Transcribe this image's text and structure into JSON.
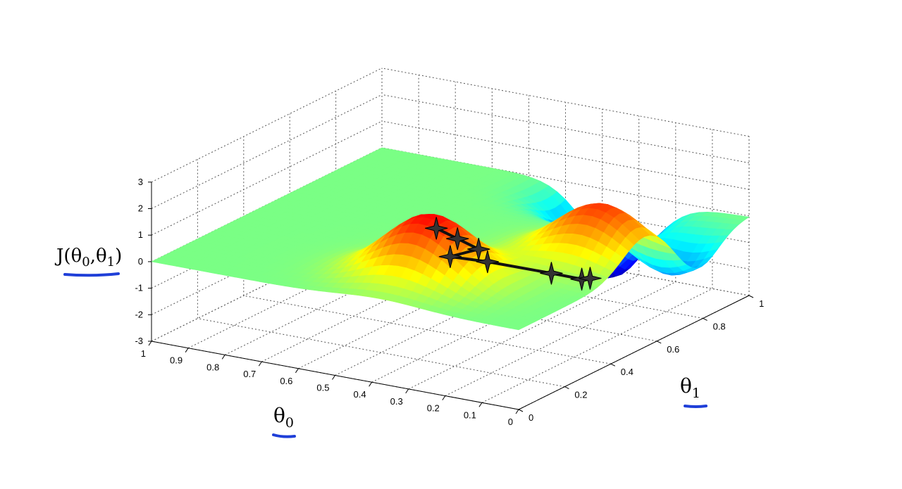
{
  "chart_data": {
    "type": "surface",
    "z_axis": {
      "label_prefix": "J(θ",
      "label_sub0": "0",
      "label_mid": ",θ",
      "label_sub1": "1",
      "label_suffix": ")",
      "ticks": [
        "-3",
        "-2",
        "-1",
        "0",
        "1",
        "2",
        "3"
      ],
      "range": [
        -3,
        3
      ]
    },
    "theta0_axis": {
      "label": "θ",
      "label_sub": "0",
      "ticks": [
        "1",
        "0.9",
        "0.8",
        "0.7",
        "0.6",
        "0.5",
        "0.4",
        "0.3",
        "0.2",
        "0.1",
        "0"
      ],
      "range": [
        1,
        0
      ]
    },
    "theta1_axis": {
      "label": "θ",
      "label_sub": "1",
      "ticks": [
        "0",
        "0.2",
        "0.4",
        "0.6",
        "0.8",
        "1"
      ],
      "range": [
        0,
        1
      ]
    },
    "grid": true,
    "colormap": "jet",
    "surface_features": [
      {
        "kind": "peak",
        "theta0": 0.38,
        "theta1": 0.22,
        "z": 2.4
      },
      {
        "kind": "peak",
        "theta0": 0.12,
        "theta1": 0.55,
        "z": 2.1
      },
      {
        "kind": "valley",
        "theta0": 0.35,
        "theta1": 0.95,
        "z": -3.0
      },
      {
        "kind": "valley",
        "theta0": 0.08,
        "theta1": 0.78,
        "z": -1.6
      }
    ],
    "descent_path": {
      "marker": "star",
      "points": [
        {
          "theta0": 0.4,
          "theta1": 0.28,
          "z": 1.6
        },
        {
          "theta0": 0.38,
          "theta1": 0.34,
          "z": 1.0
        },
        {
          "theta0": 0.36,
          "theta1": 0.4,
          "z": 0.4
        },
        {
          "theta0": 0.45,
          "theta1": 0.42,
          "z": -0.2
        },
        {
          "theta0": 0.43,
          "theta1": 0.55,
          "z": -0.9
        },
        {
          "theta0": 0.3,
          "theta1": 0.62,
          "z": -1.3
        },
        {
          "theta0": 0.28,
          "theta1": 0.72,
          "z": -1.9
        },
        {
          "theta0": 0.32,
          "theta1": 0.82,
          "z": -2.4
        }
      ]
    },
    "annotations": {
      "underline_color": "#1f3fd8"
    }
  }
}
